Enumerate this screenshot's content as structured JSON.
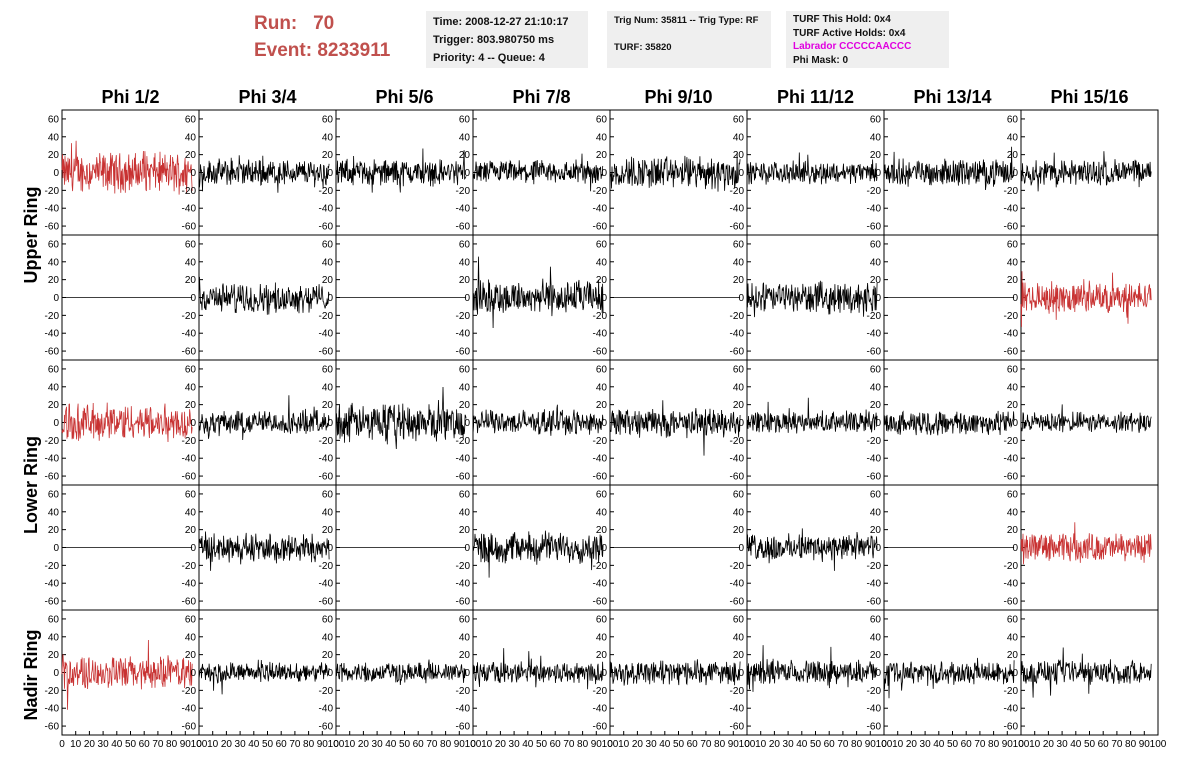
{
  "header": {
    "run_label": "Run:",
    "run_value": "70",
    "event_label": "Event:",
    "event_value": "8233911"
  },
  "info_time": {
    "time": "Time: 2008-12-27 21:10:17",
    "trigger": "Trigger: 803.980750 ms",
    "priority": "Priority: 4 -- Queue: 4"
  },
  "info_trig": {
    "trig": "Trig Num: 35811 -- Trig Type: RF",
    "turf": "TURF: 35820"
  },
  "info_turf": {
    "this_hold": "TURF This Hold: 0x4",
    "active_holds": "TURF Active Holds: 0x4",
    "labrador": "Labrador CCCCCAACCC",
    "phi_mask": "Phi Mask: 0"
  },
  "columns": [
    "Phi 1/2",
    "Phi 3/4",
    "Phi 5/6",
    "Phi 7/8",
    "Phi 9/10",
    "Phi 11/12",
    "Phi 13/14",
    "Phi 15/16"
  ],
  "rings": [
    "Upper Ring",
    "Lower Ring",
    "Nadir Ring"
  ],
  "colors": {
    "highlight": "#c83232",
    "normal": "#000000",
    "header_red": "#c0504d",
    "magenta": "#e000e0",
    "info_bg": "#efefef"
  },
  "chart_data": {
    "type": "line",
    "ylim": [
      -70,
      70
    ],
    "xlim": [
      0,
      100
    ],
    "yticks": [
      -60,
      -40,
      -20,
      0,
      20,
      40,
      60
    ],
    "xticks": [
      0,
      10,
      20,
      30,
      40,
      50,
      60,
      70,
      80,
      90,
      100
    ],
    "xtick_labels": [
      "0",
      "10",
      "20",
      "30",
      "40",
      "50",
      "60",
      "70",
      "80",
      "90",
      "100"
    ],
    "xtick_labels_last_panel": [
      "0",
      "10",
      "20",
      "30",
      "40",
      "50",
      "60",
      "70",
      "80",
      "90",
      "100"
    ],
    "grid": false,
    "legend": "none",
    "samples_per_trace": 260,
    "panels": [
      {
        "row": 0,
        "col": 0,
        "amp": 18,
        "flat": false,
        "highlight": true
      },
      {
        "row": 0,
        "col": 1,
        "amp": 12,
        "flat": false,
        "highlight": false
      },
      {
        "row": 0,
        "col": 2,
        "amp": 12,
        "flat": false,
        "highlight": false
      },
      {
        "row": 0,
        "col": 3,
        "amp": 11,
        "flat": false,
        "highlight": false
      },
      {
        "row": 0,
        "col": 4,
        "amp": 15,
        "flat": false,
        "highlight": false
      },
      {
        "row": 0,
        "col": 5,
        "amp": 10,
        "flat": false,
        "highlight": false
      },
      {
        "row": 0,
        "col": 6,
        "amp": 12,
        "flat": false,
        "highlight": false
      },
      {
        "row": 0,
        "col": 7,
        "amp": 12,
        "flat": false,
        "highlight": false
      },
      {
        "row": 1,
        "col": 0,
        "amp": 0,
        "flat": true,
        "highlight": false
      },
      {
        "row": 1,
        "col": 1,
        "amp": 13,
        "flat": false,
        "highlight": false
      },
      {
        "row": 1,
        "col": 2,
        "amp": 0,
        "flat": true,
        "highlight": false
      },
      {
        "row": 1,
        "col": 3,
        "amp": 16,
        "flat": false,
        "highlight": false
      },
      {
        "row": 1,
        "col": 4,
        "amp": 0,
        "flat": true,
        "highlight": false
      },
      {
        "row": 1,
        "col": 5,
        "amp": 14,
        "flat": false,
        "highlight": false
      },
      {
        "row": 1,
        "col": 6,
        "amp": 0,
        "flat": true,
        "highlight": false
      },
      {
        "row": 1,
        "col": 7,
        "amp": 14,
        "flat": false,
        "highlight": true
      },
      {
        "row": 2,
        "col": 0,
        "amp": 17,
        "flat": false,
        "highlight": true
      },
      {
        "row": 2,
        "col": 1,
        "amp": 11,
        "flat": false,
        "highlight": false
      },
      {
        "row": 2,
        "col": 2,
        "amp": 17,
        "flat": false,
        "highlight": false
      },
      {
        "row": 2,
        "col": 3,
        "amp": 11,
        "flat": false,
        "highlight": false
      },
      {
        "row": 2,
        "col": 4,
        "amp": 13,
        "flat": false,
        "highlight": false
      },
      {
        "row": 2,
        "col": 5,
        "amp": 10,
        "flat": false,
        "highlight": false
      },
      {
        "row": 2,
        "col": 6,
        "amp": 11,
        "flat": false,
        "highlight": false
      },
      {
        "row": 2,
        "col": 7,
        "amp": 9,
        "flat": false,
        "highlight": false
      },
      {
        "row": 3,
        "col": 0,
        "amp": 0,
        "flat": true,
        "highlight": false
      },
      {
        "row": 3,
        "col": 1,
        "amp": 13,
        "flat": false,
        "highlight": false
      },
      {
        "row": 3,
        "col": 2,
        "amp": 0,
        "flat": true,
        "highlight": false
      },
      {
        "row": 3,
        "col": 3,
        "amp": 14,
        "flat": false,
        "highlight": false
      },
      {
        "row": 3,
        "col": 4,
        "amp": 0,
        "flat": true,
        "highlight": false
      },
      {
        "row": 3,
        "col": 5,
        "amp": 12,
        "flat": false,
        "highlight": false
      },
      {
        "row": 3,
        "col": 6,
        "amp": 0,
        "flat": true,
        "highlight": false
      },
      {
        "row": 3,
        "col": 7,
        "amp": 13,
        "flat": false,
        "highlight": true
      },
      {
        "row": 4,
        "col": 0,
        "amp": 15,
        "flat": false,
        "highlight": true
      },
      {
        "row": 4,
        "col": 1,
        "amp": 9,
        "flat": false,
        "highlight": false
      },
      {
        "row": 4,
        "col": 2,
        "amp": 9,
        "flat": false,
        "highlight": false
      },
      {
        "row": 4,
        "col": 3,
        "amp": 10,
        "flat": false,
        "highlight": false
      },
      {
        "row": 4,
        "col": 4,
        "amp": 11,
        "flat": false,
        "highlight": false
      },
      {
        "row": 4,
        "col": 5,
        "amp": 11,
        "flat": false,
        "highlight": false
      },
      {
        "row": 4,
        "col": 6,
        "amp": 10,
        "flat": false,
        "highlight": false
      },
      {
        "row": 4,
        "col": 7,
        "amp": 11,
        "flat": false,
        "highlight": false
      }
    ]
  }
}
